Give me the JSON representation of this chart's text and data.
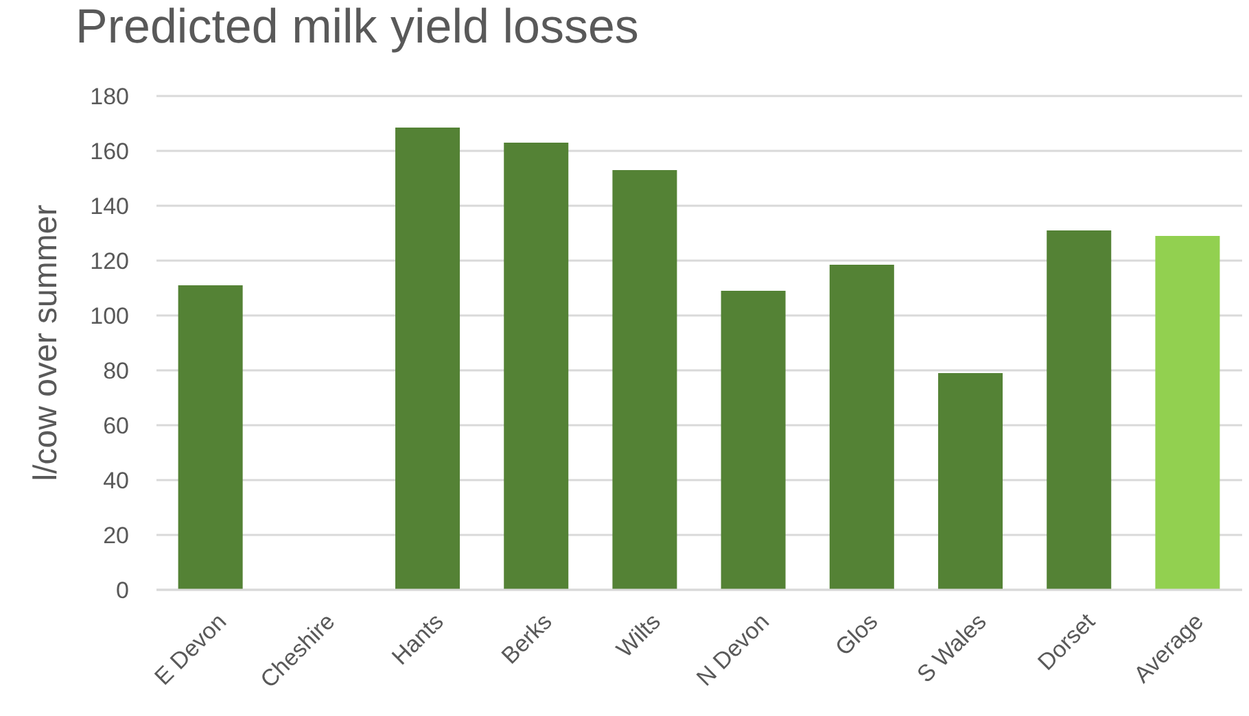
{
  "chart_data": {
    "type": "bar",
    "title": "Predicted milk yield losses",
    "ylabel": "l/cow over summer",
    "categories": [
      "E Devon",
      "Cheshire",
      "Hants",
      "Berks",
      "Wilts",
      "N Devon",
      "Glos",
      "S Wales",
      "Dorset",
      "Average"
    ],
    "values": [
      111,
      null,
      168.5,
      163,
      153,
      109,
      118.5,
      79,
      131,
      129
    ],
    "colors": [
      "#548235",
      "#548235",
      "#548235",
      "#548235",
      "#548235",
      "#548235",
      "#548235",
      "#548235",
      "#548235",
      "#92d050"
    ],
    "ylim": [
      0,
      180
    ],
    "yticks": [
      0,
      20,
      40,
      60,
      80,
      100,
      120,
      140,
      160,
      180
    ],
    "grid": "y"
  }
}
